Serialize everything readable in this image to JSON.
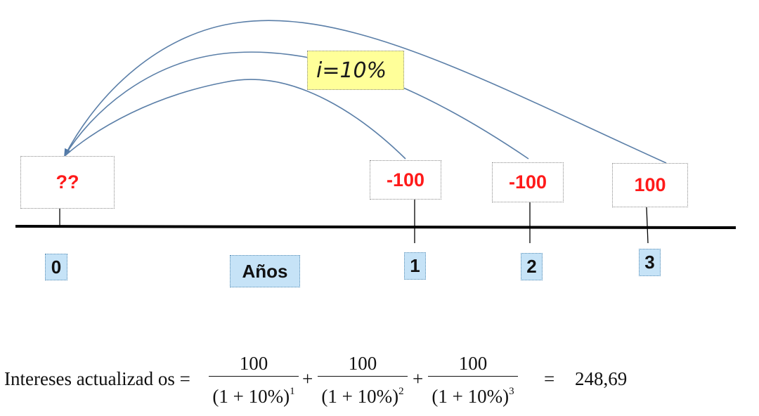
{
  "rate_label": "i=10%",
  "axis_label": "Años",
  "timeline": [
    {
      "year": "0",
      "value": "??"
    },
    {
      "year": "1",
      "value": "-100"
    },
    {
      "year": "2",
      "value": "-100"
    },
    {
      "year": "3",
      "value": "100"
    }
  ],
  "formula": {
    "lhs": "Intereses actualizad os =",
    "terms": [
      {
        "numerator": "100",
        "base": "(1 + 10%)",
        "exponent": "1"
      },
      {
        "numerator": "100",
        "base": "(1 + 10%)",
        "exponent": "2"
      },
      {
        "numerator": "100",
        "base": "(1 + 10%)",
        "exponent": "3"
      }
    ],
    "plus": "+",
    "equals": "=",
    "result": "248,69"
  },
  "colors": {
    "arrow": "#5b7fa8",
    "cashflow_text": "#ff1a1a",
    "rate_bg": "#ffff99",
    "year_bg": "#c6e3f7",
    "timeline": "#000000"
  }
}
